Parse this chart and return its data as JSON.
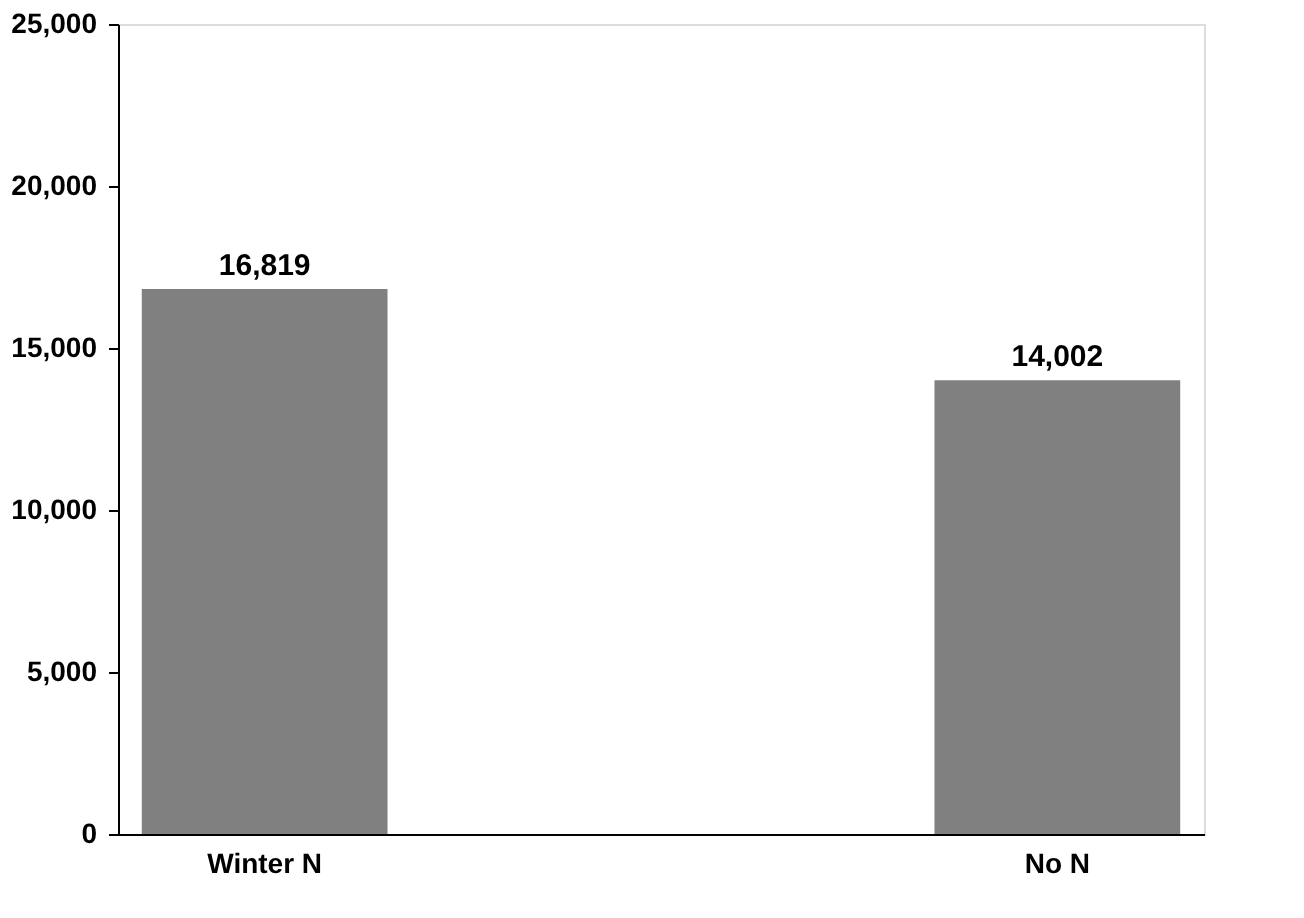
{
  "chart_data": {
    "type": "bar",
    "categories": [
      "Winter N",
      "No N"
    ],
    "values": [
      16819,
      14002
    ],
    "value_labels": [
      "16,819",
      "14,002"
    ],
    "color": "#808080",
    "ylim": [
      0,
      25000
    ],
    "yticks": [
      0,
      {
        "value": 5000,
        "label": "5,000"
      },
      {
        "value": 10000,
        "label": "10,000"
      },
      {
        "value": 15000,
        "label": "15,000"
      },
      {
        "value": 20000,
        "label": "20,000"
      },
      {
        "value": 25000,
        "label": "25,000"
      }
    ],
    "grid": false
  }
}
